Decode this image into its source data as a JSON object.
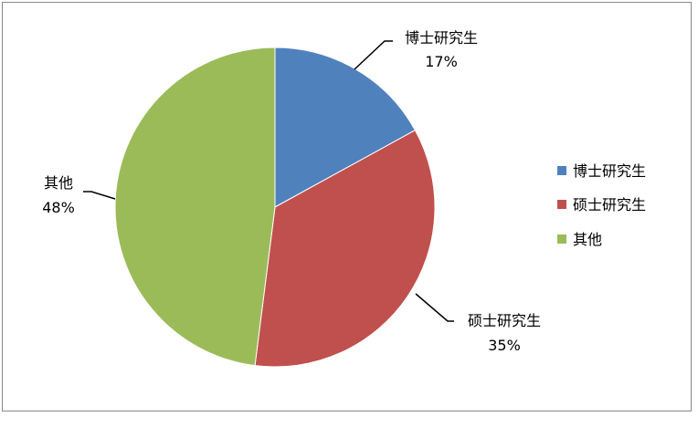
{
  "chart_data": {
    "type": "pie",
    "title": "",
    "categories": [
      "博士研究生",
      "硕士研究生",
      "其他"
    ],
    "values": [
      17,
      35,
      48
    ],
    "labels": [
      "17%",
      "35%",
      "48%"
    ],
    "colors": [
      "#4F81BD",
      "#C0504D",
      "#9BBB59"
    ],
    "start_angle": "12 o'clock",
    "direction": "clockwise",
    "legend_position": "right"
  }
}
